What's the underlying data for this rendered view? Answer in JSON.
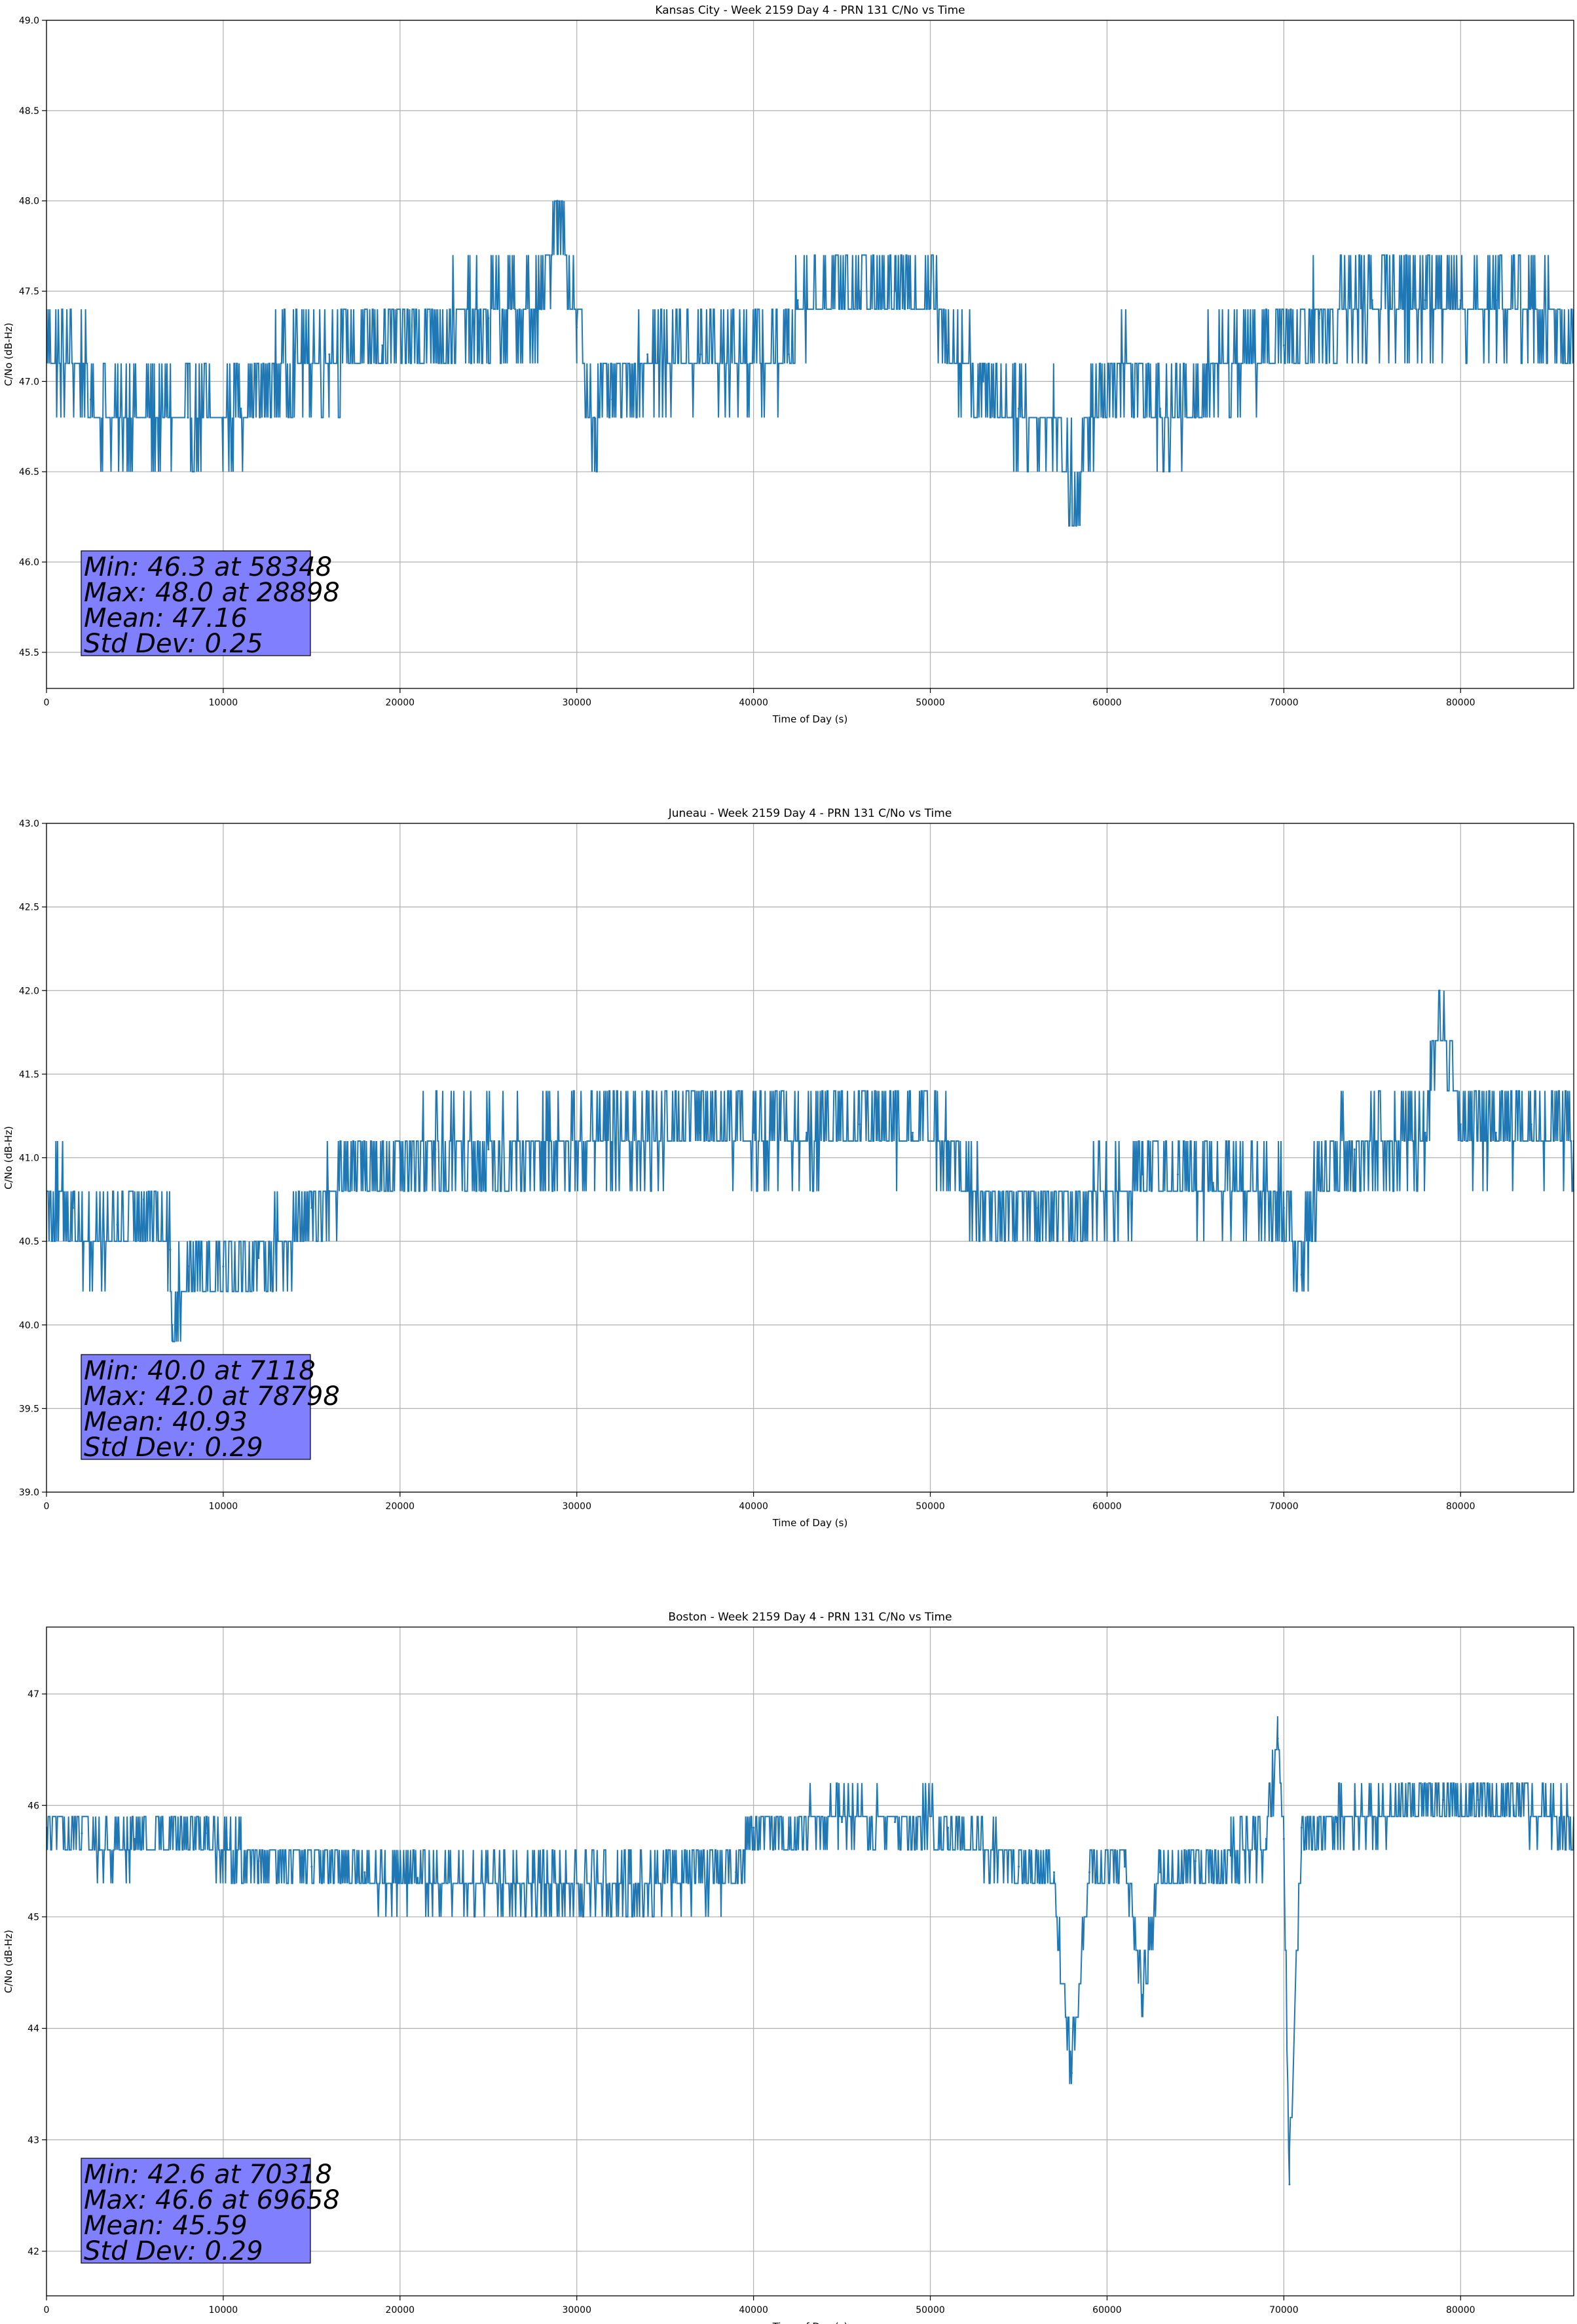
{
  "chart_data": [
    {
      "type": "line",
      "title": "Kansas City - Week 2159 Day 4 - PRN 131 C/No vs Time",
      "xlabel": "Time of Day (s)",
      "ylabel": "C/No (dB-Hz)",
      "xlim": [
        0,
        86400
      ],
      "ylim": [
        45.3,
        49.0
      ],
      "xticks": [
        0,
        10000,
        20000,
        30000,
        40000,
        50000,
        60000,
        70000,
        80000
      ],
      "yticks": [
        45.5,
        46.0,
        46.5,
        47.0,
        47.5,
        48.0,
        48.5,
        49.0
      ],
      "ytick_decimals": 1,
      "grid": true,
      "color": "#1f77b4",
      "stats_lines": [
        "Min: 46.3 at 58348",
        "Max: 48.0 at 28898",
        "Mean: 47.16",
        "Std Dev: 0.25"
      ],
      "stats_box_color": "#8080ff",
      "x": [
        0,
        2000,
        2500,
        4000,
        6000,
        8000,
        10000,
        11000,
        12500,
        14000,
        16000,
        19000,
        22000,
        25000,
        28000,
        28898,
        30000,
        31000,
        32000,
        34000,
        37000,
        40000,
        42000,
        42500,
        44000,
        46000,
        48000,
        50000,
        51000,
        53000,
        55000,
        57000,
        58348,
        59000,
        61000,
        63000,
        65000,
        66000,
        68000,
        70000,
        72000,
        75000,
        78000,
        80000,
        82000,
        84000,
        86400
      ],
      "y": [
        47.15,
        47.1,
        46.9,
        46.85,
        46.8,
        46.8,
        46.8,
        46.85,
        47.0,
        47.15,
        47.15,
        47.2,
        47.3,
        47.35,
        47.4,
        48.0,
        47.3,
        46.8,
        46.9,
        47.15,
        47.15,
        47.15,
        47.15,
        47.45,
        47.5,
        47.5,
        47.5,
        47.5,
        47.2,
        47.0,
        46.85,
        46.8,
        46.3,
        46.8,
        47.1,
        46.85,
        46.8,
        47.1,
        47.15,
        47.2,
        47.35,
        47.45,
        47.45,
        47.45,
        47.45,
        47.45,
        47.2
      ]
    },
    {
      "type": "line",
      "title": "Juneau - Week 2159 Day 4 - PRN 131 C/No vs Time",
      "xlabel": "Time of Day (s)",
      "ylabel": "C/No (dB-Hz)",
      "xlim": [
        0,
        86400
      ],
      "ylim": [
        39.0,
        43.0
      ],
      "xticks": [
        0,
        10000,
        20000,
        30000,
        40000,
        50000,
        60000,
        70000,
        80000
      ],
      "yticks": [
        39.0,
        39.5,
        40.0,
        40.5,
        41.0,
        41.5,
        42.0,
        42.5,
        43.0
      ],
      "ytick_decimals": 1,
      "grid": true,
      "color": "#1f77b4",
      "stats_lines": [
        "Min: 40.0 at 7118",
        "Max: 42.0 at 78798",
        "Mean: 40.93",
        "Std Dev: 0.29"
      ],
      "stats_box_color": "#8080ff",
      "x": [
        0,
        1500,
        2500,
        4000,
        5500,
        7000,
        7118,
        8000,
        10000,
        12000,
        13500,
        15000,
        16000,
        18000,
        20000,
        22000,
        25000,
        28000,
        31000,
        34000,
        37000,
        40000,
        43000,
        46000,
        49000,
        51000,
        52000,
        54000,
        56000,
        58000,
        60000,
        62000,
        64000,
        66000,
        68000,
        70000,
        71000,
        72000,
        74000,
        76000,
        78000,
        78798,
        80000,
        82000,
        84000,
        86400
      ],
      "y": [
        40.8,
        40.7,
        40.45,
        40.6,
        40.75,
        40.45,
        40.0,
        40.35,
        40.35,
        40.4,
        40.5,
        40.7,
        40.8,
        40.95,
        41.0,
        41.05,
        41.05,
        41.05,
        41.1,
        41.1,
        41.15,
        41.15,
        41.15,
        41.2,
        41.15,
        41.1,
        40.8,
        40.7,
        40.7,
        40.65,
        40.8,
        40.9,
        40.9,
        40.85,
        40.8,
        40.7,
        40.3,
        41.0,
        41.05,
        41.1,
        41.15,
        42.0,
        41.2,
        41.15,
        41.2,
        41.1
      ]
    },
    {
      "type": "line",
      "title": "Boston - Week 2159 Day 4 - PRN 131 C/No vs Time",
      "xlabel": "Time of Day (s)",
      "ylabel": "C/No (dB-Hz)",
      "xlim": [
        0,
        86400
      ],
      "ylim": [
        41.6,
        47.6
      ],
      "xticks": [
        0,
        10000,
        20000,
        30000,
        40000,
        50000,
        60000,
        70000,
        80000
      ],
      "yticks": [
        42,
        43,
        44,
        45,
        46,
        47
      ],
      "ytick_decimals": 0,
      "grid": true,
      "color": "#1f77b4",
      "stats_lines": [
        "Min: 42.6 at 70318",
        "Max: 46.6 at 69658",
        "Mean: 45.59",
        "Std Dev: 0.29"
      ],
      "stats_box_color": "#8080ff",
      "x": [
        0,
        2000,
        3000,
        5000,
        7000,
        9000,
        10000,
        12000,
        15000,
        18000,
        21000,
        24000,
        27000,
        30000,
        33000,
        36000,
        39000,
        40000,
        42000,
        45000,
        48000,
        51000,
        53000,
        55000,
        57000,
        58000,
        59000,
        61000,
        62000,
        63000,
        65000,
        67000,
        69000,
        69658,
        70000,
        70318,
        71000,
        73000,
        75000,
        77000,
        79000,
        81000,
        83000,
        86400
      ],
      "y": [
        45.8,
        45.75,
        45.6,
        45.7,
        45.8,
        45.75,
        45.6,
        45.5,
        45.45,
        45.4,
        45.35,
        45.3,
        45.3,
        45.3,
        45.3,
        45.35,
        45.4,
        45.8,
        45.8,
        45.85,
        45.85,
        45.8,
        45.6,
        45.45,
        45.4,
        43.6,
        45.4,
        45.45,
        44.3,
        45.4,
        45.5,
        45.55,
        45.7,
        46.6,
        45.7,
        42.6,
        45.8,
        45.85,
        45.9,
        46.0,
        46.05,
        46.05,
        46.0,
        45.8
      ]
    }
  ]
}
